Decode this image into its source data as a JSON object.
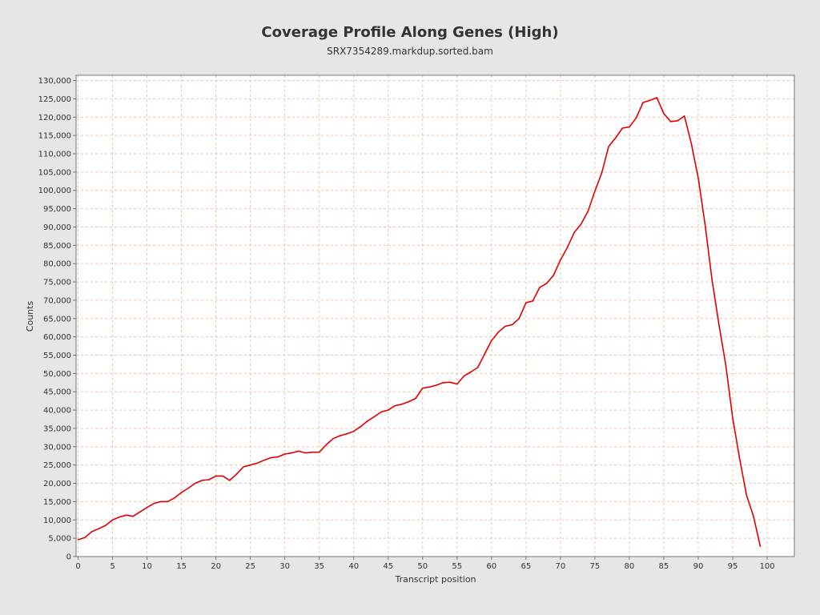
{
  "chart_data": {
    "type": "line",
    "title": "Coverage Profile Along Genes (High)",
    "subtitle": "SRX7354289.markdup.sorted.bam",
    "xlabel": "Transcript position",
    "ylabel": "Counts",
    "xlim": [
      0,
      104
    ],
    "ylim": [
      0,
      131000
    ],
    "x_ticks": [
      0,
      5,
      10,
      15,
      20,
      25,
      30,
      35,
      40,
      45,
      50,
      55,
      60,
      65,
      70,
      75,
      80,
      85,
      90,
      95,
      100
    ],
    "y_ticks": [
      0,
      5000,
      10000,
      15000,
      20000,
      25000,
      30000,
      35000,
      40000,
      45000,
      50000,
      55000,
      60000,
      65000,
      70000,
      75000,
      80000,
      85000,
      90000,
      95000,
      100000,
      105000,
      110000,
      115000,
      120000,
      125000,
      130000
    ],
    "grid": true,
    "series": [
      {
        "color": "#dd0000",
        "x": [
          0,
          1,
          2,
          3,
          4,
          5,
          6,
          7,
          8,
          9,
          10,
          11,
          12,
          13,
          14,
          15,
          16,
          17,
          18,
          19,
          20,
          21,
          22,
          23,
          24,
          25,
          26,
          27,
          28,
          29,
          30,
          31,
          32,
          33,
          34,
          35,
          36,
          37,
          38,
          39,
          40,
          41,
          42,
          43,
          44,
          45,
          46,
          47,
          48,
          49,
          50,
          51,
          52,
          53,
          54,
          55,
          56,
          57,
          58,
          59,
          60,
          61,
          62,
          63,
          64,
          65,
          66,
          67,
          68,
          69,
          70,
          71,
          72,
          73,
          74,
          75,
          76,
          77,
          78,
          79,
          80,
          81,
          82,
          83,
          84,
          85,
          86,
          87,
          88,
          89,
          90,
          91,
          92,
          93,
          94,
          95,
          96,
          97,
          98,
          99
        ],
        "values": [
          4600,
          5200,
          6800,
          7600,
          8500,
          10000,
          10800,
          11300,
          11000,
          12200,
          13400,
          14500,
          15000,
          15000,
          16000,
          17500,
          18700,
          20000,
          20800,
          21000,
          22000,
          22000,
          20800,
          22500,
          24500,
          25000,
          25500,
          26300,
          27000,
          27200,
          28000,
          28300,
          28800,
          28300,
          28500,
          28500,
          30500,
          32200,
          33000,
          33500,
          34200,
          35500,
          37000,
          38200,
          39500,
          40000,
          41200,
          41600,
          42300,
          43200,
          46000,
          46300,
          46800,
          47500,
          47600,
          47100,
          49300,
          50400,
          51600,
          55300,
          59000,
          61300,
          62900,
          63300,
          65000,
          69300,
          69800,
          73500,
          74600,
          76800,
          81000,
          84400,
          88500,
          90800,
          94300,
          99800,
          104800,
          112000,
          114300,
          117000,
          117300,
          119800,
          124000,
          124600,
          125300,
          121000,
          118800,
          119000,
          120300,
          112800,
          103300,
          90500,
          75500,
          63400,
          52200,
          37800,
          26800,
          16800,
          11100,
          2800
        ]
      }
    ]
  }
}
